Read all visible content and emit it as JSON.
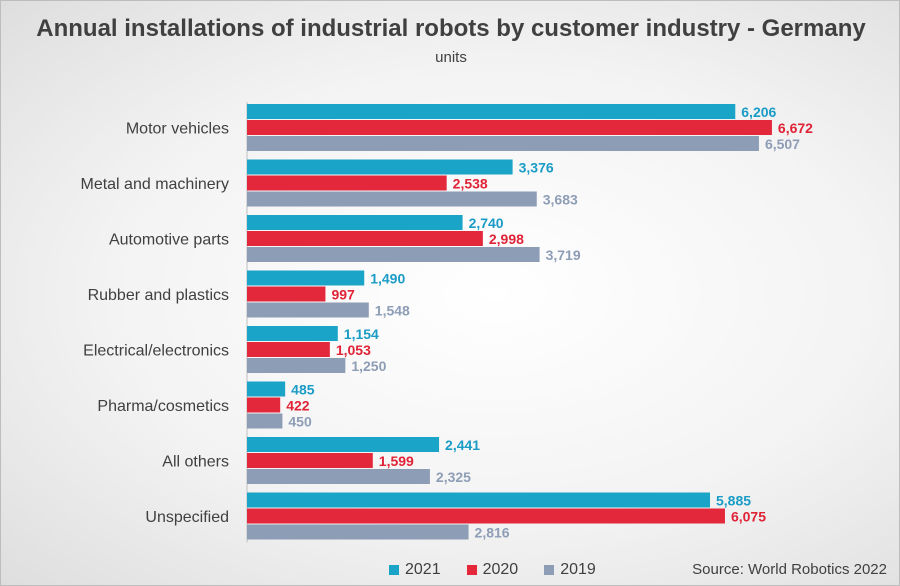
{
  "chart_data": {
    "type": "bar",
    "orientation": "horizontal",
    "title": "Annual installations of industrial robots by customer industry - Germany",
    "subtitle": "units",
    "categories": [
      "Motor vehicles",
      "Metal and machinery",
      "Automotive parts",
      "Rubber and plastics",
      "Electrical/electronics",
      "Pharma/cosmetics",
      "All others",
      "Unspecified"
    ],
    "series": [
      {
        "name": "2021",
        "color": "#1aa4c8",
        "label_color": "#1a9cc6",
        "values": [
          6206,
          3376,
          2740,
          1490,
          1154,
          485,
          2441,
          5885
        ],
        "labels": [
          "6,206",
          "3,376",
          "2,740",
          "1,490",
          "1,154",
          "485",
          "2,441",
          "5,885"
        ]
      },
      {
        "name": "2020",
        "color": "#e3283c",
        "label_color": "#e02336",
        "values": [
          6672,
          2538,
          2998,
          997,
          1053,
          422,
          1599,
          6075
        ],
        "labels": [
          "6,672",
          "2,538",
          "2,998",
          "997",
          "1,053",
          "422",
          "1,599",
          "6,075"
        ]
      },
      {
        "name": "2019",
        "color": "#8e9db6",
        "label_color": "#8e9db6",
        "values": [
          6507,
          3683,
          3719,
          1548,
          1250,
          450,
          2325,
          2816
        ],
        "labels": [
          "6,507",
          "3,683",
          "3,719",
          "1,548",
          "1,250",
          "450",
          "2,325",
          "2,816"
        ]
      }
    ],
    "xlim": [
      0,
      6800
    ],
    "grid": false,
    "legend_position": "bottom"
  },
  "source": "Source: World Robotics 2022"
}
